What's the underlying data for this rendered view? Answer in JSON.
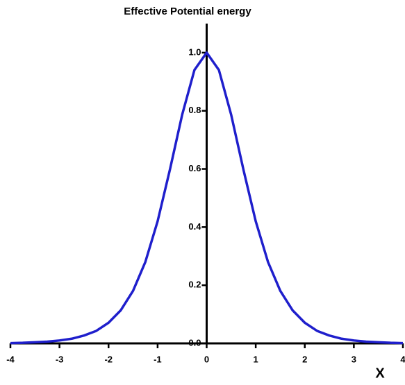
{
  "chart_data": {
    "type": "line",
    "title": "Effective Potential energy",
    "x_label": "X",
    "x": [
      -4,
      -3.75,
      -3.5,
      -3.25,
      -3,
      -2.75,
      -2.5,
      -2.25,
      -2,
      -1.75,
      -1.5,
      -1.25,
      -1,
      -0.75,
      -0.5,
      -0.25,
      0,
      0.25,
      0.5,
      0.75,
      1,
      1.25,
      1.5,
      1.75,
      2,
      2.25,
      2.5,
      2.75,
      3,
      3.25,
      3.5,
      3.75,
      4
    ],
    "series": [
      {
        "color": "#1f1fcc",
        "values": [
          0.001,
          0.002,
          0.004,
          0.006,
          0.01,
          0.016,
          0.027,
          0.043,
          0.071,
          0.114,
          0.181,
          0.28,
          0.42,
          0.597,
          0.786,
          0.94,
          1,
          0.94,
          0.786,
          0.597,
          0.42,
          0.28,
          0.181,
          0.114,
          0.071,
          0.043,
          0.027,
          0.016,
          0.01,
          0.006,
          0.004,
          0.002,
          0.001
        ]
      }
    ],
    "xlim": [
      -4,
      4
    ],
    "xticks": [
      -4,
      -3,
      -2,
      -1,
      0,
      1,
      2,
      3,
      4
    ],
    "ylim": [
      0,
      1.1
    ],
    "yticks": [
      {
        "value": 0,
        "label": "0.0"
      },
      {
        "value": 0.2,
        "label": "0.2"
      },
      {
        "value": 0.4,
        "label": "0.4"
      },
      {
        "value": 0.6,
        "label": "0.6"
      },
      {
        "value": 0.8,
        "label": "0.8"
      },
      {
        "value": 1,
        "label": "1.0"
      }
    ]
  }
}
